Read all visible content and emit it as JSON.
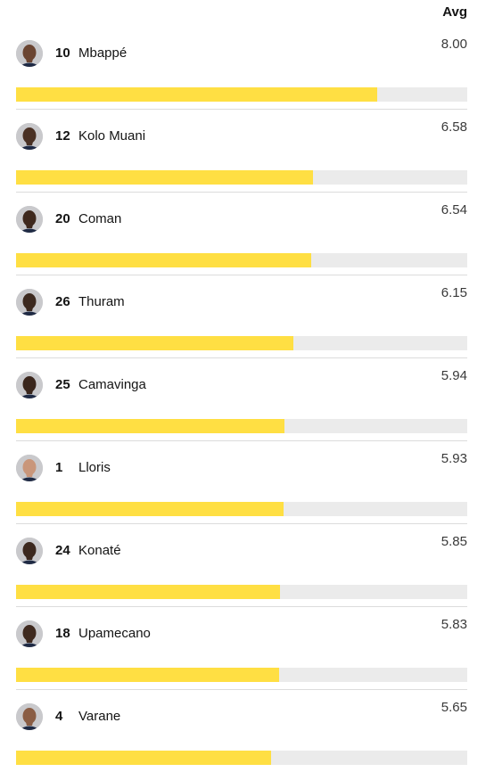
{
  "header": {
    "avg_label": "Avg"
  },
  "scale_max": 10,
  "colors": {
    "bar_fill": "#ffdf43",
    "bar_track": "#ebebeb",
    "divider": "#dcdcdc"
  },
  "players": [
    {
      "number": "10",
      "name": "Mbappé",
      "rating": "8.00",
      "value": 8.0,
      "skin": "#6b4532"
    },
    {
      "number": "12",
      "name": "Kolo Muani",
      "rating": "6.58",
      "value": 6.58,
      "skin": "#4a3124"
    },
    {
      "number": "20",
      "name": "Coman",
      "rating": "6.54",
      "value": 6.54,
      "skin": "#3e281d"
    },
    {
      "number": "26",
      "name": "Thuram",
      "rating": "6.15",
      "value": 6.15,
      "skin": "#3d2a20"
    },
    {
      "number": "25",
      "name": "Camavinga",
      "rating": "5.94",
      "value": 5.94,
      "skin": "#3a261c"
    },
    {
      "number": "1",
      "name": "Lloris",
      "rating": "5.93",
      "value": 5.93,
      "skin": "#c9967a"
    },
    {
      "number": "24",
      "name": "Konaté",
      "rating": "5.85",
      "value": 5.85,
      "skin": "#3c281e"
    },
    {
      "number": "18",
      "name": "Upamecano",
      "rating": "5.83",
      "value": 5.83,
      "skin": "#3f2a1f"
    },
    {
      "number": "4",
      "name": "Varane",
      "rating": "5.65",
      "value": 5.65,
      "skin": "#8a5d44"
    }
  ]
}
